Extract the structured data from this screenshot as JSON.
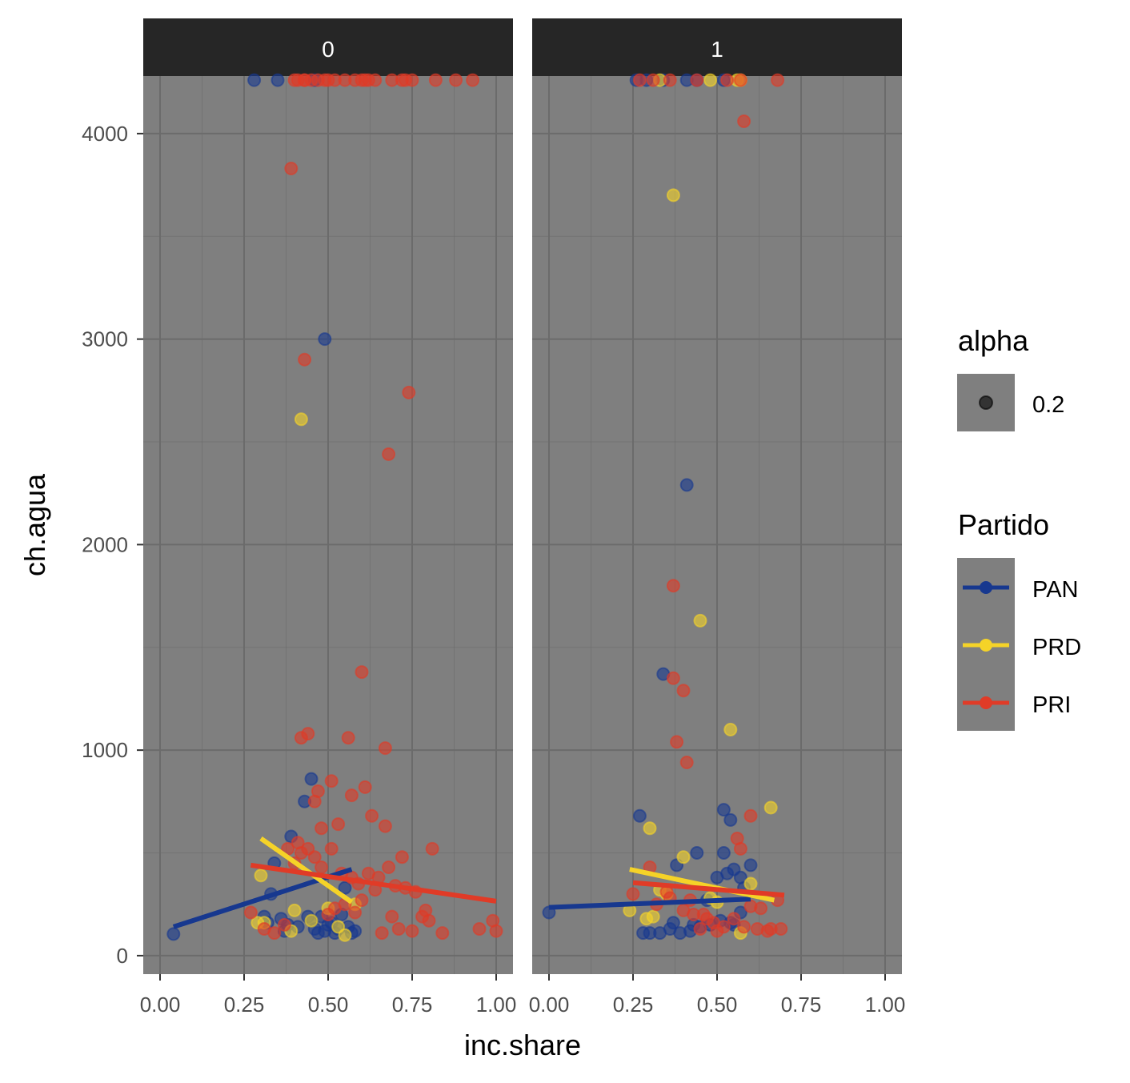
{
  "chart_data": {
    "type": "scatter",
    "xlabel": "inc.share",
    "ylabel": "ch.agua",
    "xlim": [
      -0.05,
      1.05
    ],
    "ylim": [
      -90,
      4280
    ],
    "x_ticks": [
      0,
      0.25,
      0.5,
      0.75,
      1
    ],
    "x_tick_labels": [
      "0.00",
      "0.25",
      "0.50",
      "0.75",
      "1.00"
    ],
    "y_ticks": [
      0,
      1000,
      2000,
      3000,
      4000
    ],
    "y_tick_labels": [
      "0",
      "1000",
      "2000",
      "3000",
      "4000"
    ],
    "panel_background": "#7f7f7f",
    "grid_color": "#6b6b6b",
    "strip_background": "#262626",
    "point_alpha": 0.6,
    "legend_alpha": {
      "title": "alpha",
      "label": "0.2"
    },
    "legend_partido": {
      "title": "Partido",
      "items": [
        {
          "name": "PAN",
          "color": "#17388f"
        },
        {
          "name": "PRD",
          "color": "#f5d328"
        },
        {
          "name": "PRI",
          "color": "#e03b27"
        }
      ]
    },
    "panels": [
      {
        "strip": "0",
        "lines": [
          {
            "series": "PAN",
            "x": [
              0.04,
              0.57
            ],
            "y": [
              140,
              420
            ]
          },
          {
            "series": "PRD",
            "x": [
              0.3,
              0.57
            ],
            "y": [
              570,
              260
            ]
          },
          {
            "series": "PRI",
            "x": [
              0.27,
              1.0
            ],
            "y": [
              440,
              265
            ]
          }
        ],
        "points": [
          {
            "series": "PAN",
            "x": [
              0.28,
              0.35,
              0.46,
              0.49,
              0.04,
              0.31,
              0.33,
              0.34,
              0.36,
              0.38,
              0.39,
              0.43,
              0.45,
              0.45,
              0.46,
              0.48,
              0.49,
              0.5,
              0.51,
              0.52,
              0.53,
              0.55,
              0.57,
              0.58,
              0.47,
              0.44,
              0.41,
              0.37,
              0.32,
              0.54,
              0.56
            ],
            "y": [
              4260,
              4260,
              4260,
              3000,
              105,
              190,
              300,
              450,
              180,
              150,
              580,
              750,
              860,
              170,
              130,
              190,
              120,
              150,
              160,
              110,
              130,
              330,
              110,
              120,
              110,
              190,
              140,
              120,
              160,
              200,
              140
            ]
          },
          {
            "series": "PRD",
            "x": [
              0.42,
              0.3,
              0.31,
              0.39,
              0.5,
              0.55,
              0.53,
              0.45,
              0.4,
              0.29,
              0.58
            ],
            "y": [
              2610,
              390,
              160,
              120,
              230,
              100,
              140,
              170,
              220,
              160,
              250
            ]
          },
          {
            "series": "PRI",
            "x": [
              0.4,
              0.43,
              0.41,
              0.43,
              0.45,
              0.47,
              0.49,
              0.5,
              0.52,
              0.55,
              0.58,
              0.6,
              0.61,
              0.62,
              0.64,
              0.69,
              0.72,
              0.73,
              0.75,
              0.82,
              0.88,
              0.93,
              0.39,
              0.43,
              0.68,
              0.74,
              0.6,
              0.67,
              0.42,
              0.44,
              0.56,
              0.51,
              0.47,
              0.48,
              0.57,
              0.61,
              0.63,
              0.67,
              0.72,
              0.81,
              0.53,
              0.46,
              0.41,
              0.38,
              0.4,
              0.42,
              0.44,
              0.46,
              0.48,
              0.51,
              0.54,
              0.57,
              0.59,
              0.62,
              0.65,
              0.68,
              0.7,
              0.73,
              0.76,
              0.79,
              0.8,
              0.84,
              0.95,
              1.0,
              0.99,
              0.27,
              0.31,
              0.34,
              0.37,
              0.5,
              0.52,
              0.55,
              0.58,
              0.6,
              0.64,
              0.66,
              0.69,
              0.71,
              0.75,
              0.78
            ],
            "y": [
              4260,
              4260,
              4260,
              4260,
              4260,
              4260,
              4260,
              4260,
              4260,
              4260,
              4260,
              4260,
              4260,
              4260,
              4260,
              4260,
              4260,
              4260,
              4260,
              4260,
              4260,
              4260,
              3830,
              2900,
              2440,
              2740,
              1380,
              1010,
              1060,
              1080,
              1060,
              850,
              800,
              620,
              780,
              820,
              680,
              630,
              480,
              520,
              640,
              750,
              550,
              520,
              450,
              500,
              520,
              480,
              430,
              520,
              400,
              380,
              350,
              400,
              380,
              430,
              340,
              330,
              310,
              220,
              170,
              110,
              130,
              120,
              170,
              210,
              130,
              110,
              150,
              200,
              230,
              250,
              210,
              270,
              320,
              110,
              190,
              130,
              120,
              190
            ]
          }
        ]
      },
      {
        "strip": "1",
        "lines": [
          {
            "series": "PAN",
            "x": [
              0.0,
              0.6
            ],
            "y": [
              235,
              275
            ]
          },
          {
            "series": "PRD",
            "x": [
              0.24,
              0.67
            ],
            "y": [
              420,
              270
            ]
          },
          {
            "series": "PRI",
            "x": [
              0.25,
              0.7
            ],
            "y": [
              355,
              295
            ]
          }
        ],
        "points": [
          {
            "series": "PAN",
            "x": [
              0.26,
              0.29,
              0.34,
              0.41,
              0.44,
              0.52,
              0.41,
              0.34,
              0.52,
              0.54,
              0.0,
              0.27,
              0.44,
              0.38,
              0.52,
              0.6,
              0.5,
              0.53,
              0.55,
              0.57,
              0.58,
              0.28,
              0.3,
              0.33,
              0.36,
              0.39,
              0.42,
              0.45,
              0.48,
              0.51,
              0.54,
              0.47,
              0.43,
              0.37,
              0.57,
              0.55
            ],
            "y": [
              4260,
              4260,
              4260,
              4260,
              4260,
              4260,
              2290,
              1370,
              710,
              660,
              210,
              680,
              500,
              440,
              500,
              440,
              380,
              400,
              420,
              380,
              330,
              110,
              110,
              110,
              130,
              110,
              120,
              140,
              150,
              170,
              160,
              270,
              150,
              160,
              210,
              150
            ]
          },
          {
            "series": "PRD",
            "x": [
              0.33,
              0.48,
              0.56,
              0.57,
              0.37,
              0.45,
              0.54,
              0.3,
              0.66,
              0.4,
              0.6,
              0.24,
              0.29,
              0.33,
              0.35,
              0.31,
              0.48,
              0.57,
              0.5
            ],
            "y": [
              4260,
              4260,
              4260,
              4260,
              3700,
              1630,
              1100,
              620,
              720,
              480,
              350,
              220,
              180,
              320,
              300,
              190,
              280,
              110,
              260
            ]
          },
          {
            "series": "PRI",
            "x": [
              0.27,
              0.31,
              0.36,
              0.44,
              0.53,
              0.57,
              0.68,
              0.58,
              0.37,
              0.37,
              0.4,
              0.38,
              0.41,
              0.6,
              0.56,
              0.57,
              0.3,
              0.25,
              0.35,
              0.42,
              0.46,
              0.49,
              0.52,
              0.55,
              0.58,
              0.62,
              0.65,
              0.66,
              0.69,
              0.68,
              0.63,
              0.4,
              0.43,
              0.47,
              0.5,
              0.32,
              0.36,
              0.45,
              0.6
            ],
            "y": [
              4260,
              4260,
              4260,
              4260,
              4260,
              4260,
              4260,
              4060,
              1800,
              1350,
              1290,
              1040,
              940,
              680,
              570,
              520,
              430,
              300,
              310,
              270,
              200,
              160,
              140,
              180,
              140,
              130,
              120,
              130,
              130,
              270,
              230,
              220,
              200,
              180,
              120,
              250,
              280,
              130,
              240
            ]
          }
        ]
      }
    ]
  }
}
